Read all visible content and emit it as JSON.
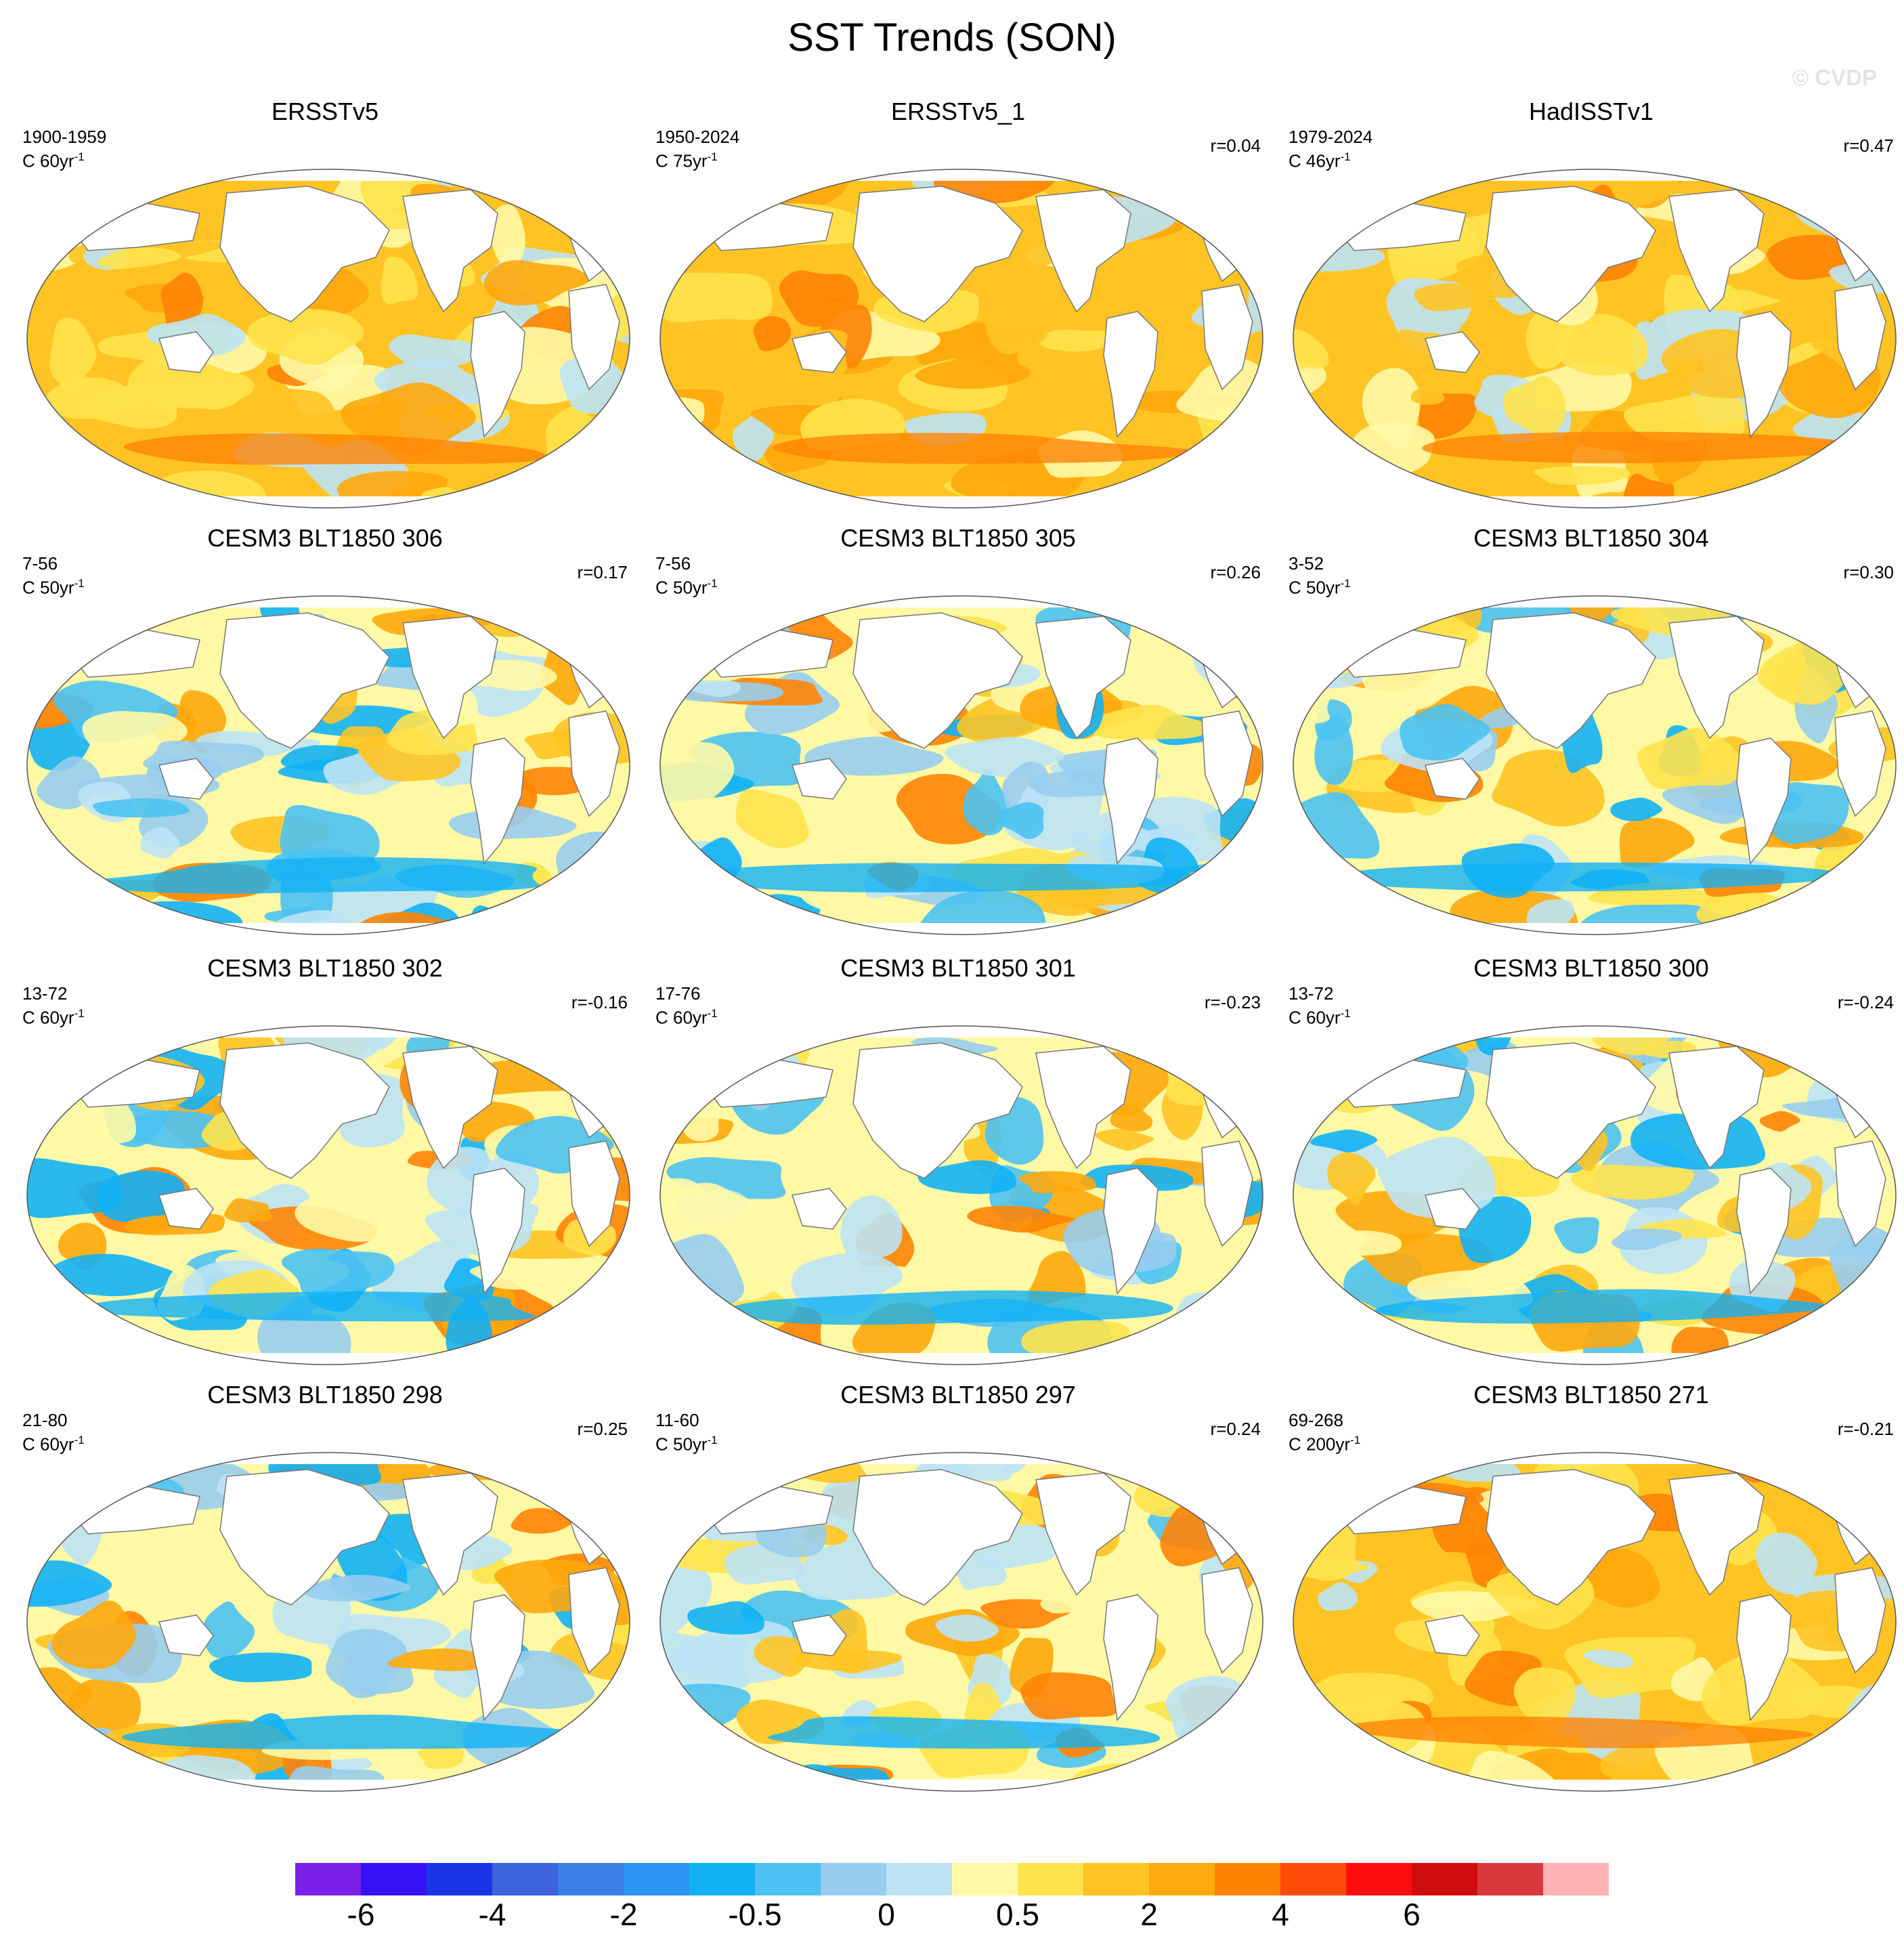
{
  "title": "SST Trends (SON)",
  "credit": "© CVDP",
  "panels": [
    {
      "title": "ERSSTv5",
      "period": "1900-1959",
      "units": "C 60yr",
      "r": "",
      "pattern": 1
    },
    {
      "title": "ERSSTv5_1",
      "period": "1950-2024",
      "units": "C 75yr",
      "r": "r=0.04",
      "pattern": 2
    },
    {
      "title": "HadISSTv1",
      "period": "1979-2024",
      "units": "C 46yr",
      "r": "r=0.47",
      "pattern": 3
    },
    {
      "title": "CESM3 BLT1850 306",
      "period": "7-56",
      "units": "C 50yr",
      "r": "r=0.17",
      "pattern": 4
    },
    {
      "title": "CESM3 BLT1850 305",
      "period": "7-56",
      "units": "C 50yr",
      "r": "r=0.26",
      "pattern": 5
    },
    {
      "title": "CESM3 BLT1850 304",
      "period": "3-52",
      "units": "C 50yr",
      "r": "r=0.30",
      "pattern": 6
    },
    {
      "title": "CESM3 BLT1850 302",
      "period": "13-72",
      "units": "C 60yr",
      "r": "r=-0.16",
      "pattern": 7
    },
    {
      "title": "CESM3 BLT1850 301",
      "period": "17-76",
      "units": "C 60yr",
      "r": "r=-0.23",
      "pattern": 8
    },
    {
      "title": "CESM3 BLT1850 300",
      "period": "13-72",
      "units": "C 60yr",
      "r": "r=-0.24",
      "pattern": 9
    },
    {
      "title": "CESM3 BLT1850 298",
      "period": "21-80",
      "units": "C 60yr",
      "r": "r=0.25",
      "pattern": 10
    },
    {
      "title": "CESM3 BLT1850 297",
      "period": "11-60",
      "units": "C 50yr",
      "r": "r=0.24",
      "pattern": 11
    },
    {
      "title": "CESM3 BLT1850 271",
      "period": "69-268",
      "units": "C 200yr",
      "r": "r=-0.21",
      "pattern": 12
    }
  ],
  "units_exponent": "-1",
  "colorbar": {
    "colors": [
      "#7b1fe8",
      "#3412f5",
      "#1a35e6",
      "#3d63dc",
      "#3a7ee6",
      "#2a95f0",
      "#12b1f5",
      "#4bc2f2",
      "#97cdee",
      "#bde3f5",
      "#fff9a6",
      "#ffe34d",
      "#ffc423",
      "#ffa90c",
      "#ff8405",
      "#ff4b0a",
      "#ff0d0d",
      "#cf0c0c",
      "#d8383e",
      "#ffb3b3"
    ],
    "labels": [
      "-6",
      "-4",
      "-2",
      "-0.5",
      "0",
      "0.5",
      "2",
      "4",
      "6"
    ]
  },
  "chart_data": {
    "type": "heatmap",
    "title": "SST Trends (SON)",
    "panels": [
      "ERSSTv5",
      "ERSSTv5_1",
      "HadISSTv1",
      "CESM3 BLT1850 306",
      "CESM3 BLT1850 305",
      "CESM3 BLT1850 304",
      "CESM3 BLT1850 302",
      "CESM3 BLT1850 301",
      "CESM3 BLT1850 300",
      "CESM3 BLT1850 298",
      "CESM3 BLT1850 297",
      "CESM3 BLT1850 271"
    ],
    "correlations": [
      "",
      "0.04",
      "0.47",
      "0.17",
      "0.26",
      "0.30",
      "-0.16",
      "-0.23",
      "-0.24",
      "0.25",
      "0.24",
      "-0.21"
    ],
    "colorbar_labels": [
      "-6",
      "-4",
      "-2",
      "-0.5",
      "0",
      "0.5",
      "2",
      "4",
      "6"
    ]
  }
}
